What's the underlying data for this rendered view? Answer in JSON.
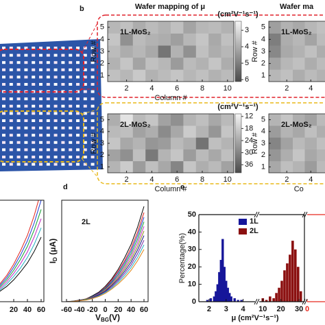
{
  "chart_data": [
    {
      "type": "heatmap",
      "panel": "b",
      "title": "Wafer mapping of μ",
      "label": "1L-MoS₂",
      "colorbar_label": "(cm²V⁻¹s⁻¹)",
      "xlabel": "Column #",
      "ylabel": "Row #",
      "xlim": [
        0.5,
        10.5
      ],
      "xticks": [
        2,
        4,
        6,
        8,
        10
      ],
      "ylim": [
        0.5,
        5.5
      ],
      "yticks": [
        1,
        2,
        3,
        4,
        5
      ],
      "z": [
        [
          3.6,
          3.8,
          3.4,
          3.9,
          3.7,
          3.5,
          3.8,
          3.6,
          3.9,
          3.7
        ],
        [
          3.9,
          3.5,
          4.2,
          3.6,
          3.8,
          4.4,
          3.7,
          3.9,
          3.5,
          4.0
        ],
        [
          3.7,
          4.0,
          3.8,
          4.1,
          5.2,
          3.9,
          4.6,
          3.6,
          4.0,
          3.8
        ],
        [
          3.5,
          4.6,
          3.7,
          3.9,
          4.0,
          4.3,
          3.8,
          3.5,
          4.1,
          3.6
        ],
        [
          3.8,
          3.6,
          4.0,
          3.7,
          3.9,
          3.6,
          4.2,
          3.8,
          3.7,
          3.9
        ]
      ],
      "zlim": [
        2.45,
        6.12
      ],
      "zticks": [
        3,
        4,
        5,
        6
      ],
      "colormap": [
        "#f6f6f6",
        "#4a4a4a"
      ]
    },
    {
      "type": "heatmap",
      "label": "2L-MoS₂",
      "colorbar_label": "(cm²V⁻¹s⁻¹)",
      "xlabel": "Column #",
      "ylabel": "Row #",
      "xlim": [
        0.5,
        10.5
      ],
      "xticks": [
        2,
        4,
        6,
        8,
        10
      ],
      "ylim": [
        0.5,
        5.5
      ],
      "yticks": [
        1,
        2,
        3,
        4,
        5
      ],
      "z": [
        [
          22,
          18,
          26,
          20,
          24,
          30,
          19,
          23,
          21,
          25
        ],
        [
          25,
          28,
          20,
          32,
          22,
          19,
          26,
          21,
          24,
          20
        ],
        [
          19,
          24,
          22,
          27,
          26,
          21,
          23,
          33,
          20,
          22
        ],
        [
          21,
          20,
          25,
          23,
          29,
          24,
          18,
          22,
          27,
          19
        ],
        [
          23,
          14,
          21,
          19,
          25,
          28,
          22,
          20,
          24,
          21
        ]
      ],
      "zlim": [
        10.7,
        40
      ],
      "zticks": [
        12,
        18,
        24,
        30,
        36
      ],
      "colormap": [
        "#f6f6f6",
        "#4a4a4a"
      ]
    },
    {
      "type": "heatmap",
      "title": "Wafer ma",
      "label": "1L-MoS₂",
      "ylabel": "Row #",
      "xlim": [
        0.5,
        5.5
      ],
      "xticks": [
        2,
        4
      ],
      "ylim": [
        0.5,
        5.5
      ],
      "yticks": [
        1,
        2,
        3,
        4,
        5
      ],
      "z": [
        [
          3.8,
          3.6,
          4.0,
          3.7,
          3.9
        ],
        [
          4.2,
          3.8,
          3.6,
          4.0,
          3.7
        ],
        [
          4.8,
          4.1,
          3.9,
          3.6,
          4.0
        ],
        [
          5.0,
          4.0,
          3.8,
          4.2,
          3.7
        ],
        [
          4.3,
          3.9,
          4.1,
          3.8,
          3.6
        ]
      ],
      "zlim": [
        2.45,
        6.12
      ],
      "colormap": [
        "#f6f6f6",
        "#4a4a4a"
      ]
    },
    {
      "type": "heatmap",
      "label": "2L-MoS₂",
      "xlabel": "Co",
      "ylabel": "Row #",
      "xlim": [
        0.5,
        5.5
      ],
      "xticks": [
        2,
        4
      ],
      "ylim": [
        0.5,
        5.5
      ],
      "yticks": [
        1,
        2,
        3,
        4,
        5
      ],
      "z": [
        [
          24,
          20,
          22,
          26,
          21
        ],
        [
          27,
          23,
          19,
          24,
          22
        ],
        [
          30,
          25,
          21,
          23,
          20
        ],
        [
          26,
          22,
          24,
          20,
          23
        ],
        [
          22,
          19,
          23,
          25,
          21
        ]
      ],
      "zlim": [
        10.7,
        40
      ],
      "colormap": [
        "#f6f6f6",
        "#4a4a4a"
      ]
    },
    {
      "type": "line",
      "x": [
        -60,
        -50,
        -40,
        -30,
        -20,
        -10,
        0,
        10,
        20,
        30,
        40,
        50,
        60
      ],
      "xlim": [
        -60,
        60
      ],
      "xticks": [
        20,
        40,
        60
      ],
      "ylim": [
        0,
        3.3
      ],
      "series": [
        {
          "color": "#e0201a",
          "values": [
            0,
            0.02,
            0.05,
            0.11,
            0.22,
            0.36,
            0.58,
            0.86,
            1.22,
            1.66,
            2.16,
            2.81,
            3.6
          ]
        },
        {
          "color": "#1a3ad0",
          "values": [
            0,
            0.02,
            0.05,
            0.1,
            0.2,
            0.33,
            0.53,
            0.79,
            1.12,
            1.52,
            1.98,
            2.57,
            3.3
          ]
        },
        {
          "color": "#10a030",
          "values": [
            0,
            0.02,
            0.05,
            0.09,
            0.18,
            0.3,
            0.48,
            0.72,
            1.02,
            1.38,
            1.8,
            2.34,
            3.0
          ]
        },
        {
          "color": "#c020c0",
          "values": [
            0,
            0.01,
            0.04,
            0.08,
            0.16,
            0.27,
            0.43,
            0.65,
            0.92,
            1.24,
            1.62,
            2.11,
            2.7
          ]
        },
        {
          "color": "#20b0c0",
          "values": [
            0,
            0.01,
            0.04,
            0.07,
            0.14,
            0.24,
            0.38,
            0.58,
            0.82,
            1.1,
            1.44,
            1.87,
            2.4
          ]
        },
        {
          "color": "#000000",
          "values": [
            0,
            0.01,
            0.03,
            0.06,
            0.13,
            0.21,
            0.34,
            0.5,
            0.71,
            0.97,
            1.26,
            1.64,
            2.1
          ]
        }
      ]
    },
    {
      "type": "line",
      "panel": "d",
      "annotation": "2L",
      "xlabel": [
        "V",
        "BG",
        "(V)"
      ],
      "ylabel": [
        "I",
        "D",
        " (μA)"
      ],
      "x": [
        -60,
        -50,
        -40,
        -30,
        -20,
        -10,
        0,
        10,
        20,
        30,
        40,
        50,
        60
      ],
      "xlim": [
        -60,
        60
      ],
      "xticks": [
        -60,
        -40,
        -20,
        0,
        20,
        40,
        60
      ],
      "ylim": [
        0,
        3.3
      ],
      "series": [
        {
          "color": "#000000",
          "values": [
            0,
            0.02,
            0.05,
            0.09,
            0.19,
            0.31,
            0.5,
            0.74,
            1.05,
            1.43,
            1.86,
            2.42,
            3.1
          ]
        },
        {
          "color": "#e0201a",
          "values": [
            0,
            0.01,
            0.04,
            0.09,
            0.17,
            0.29,
            0.46,
            0.7,
            0.99,
            1.33,
            1.74,
            2.26,
            2.9
          ]
        },
        {
          "color": "#1a3ad0",
          "values": [
            0,
            0.01,
            0.04,
            0.08,
            0.17,
            0.28,
            0.44,
            0.66,
            0.94,
            1.27,
            1.65,
            2.15,
            2.75
          ]
        },
        {
          "color": "#10a030",
          "values": [
            0,
            0.01,
            0.04,
            0.08,
            0.16,
            0.26,
            0.42,
            0.62,
            0.88,
            1.2,
            1.56,
            2.03,
            2.6
          ]
        },
        {
          "color": "#c020c0",
          "values": [
            0,
            0.01,
            0.04,
            0.07,
            0.15,
            0.25,
            0.39,
            0.59,
            0.83,
            1.13,
            1.47,
            1.91,
            2.45
          ]
        },
        {
          "color": "#8a8a10",
          "values": [
            0,
            0.01,
            0.03,
            0.07,
            0.14,
            0.23,
            0.37,
            0.55,
            0.78,
            1.06,
            1.38,
            1.79,
            2.3
          ]
        },
        {
          "color": "#101080",
          "values": [
            0,
            0.01,
            0.03,
            0.06,
            0.13,
            0.22,
            0.34,
            0.52,
            0.73,
            0.99,
            1.29,
            1.68,
            2.15
          ]
        },
        {
          "color": "#7020a0",
          "values": [
            0,
            0.01,
            0.03,
            0.06,
            0.12,
            0.2,
            0.32,
            0.48,
            0.68,
            0.92,
            1.2,
            1.56,
            2.0
          ]
        },
        {
          "color": "#20b0c0",
          "values": [
            0,
            0.01,
            0.03,
            0.06,
            0.11,
            0.19,
            0.3,
            0.44,
            0.63,
            0.85,
            1.11,
            1.44,
            1.85
          ]
        },
        {
          "color": "#e08010",
          "values": [
            0,
            0.01,
            0.03,
            0.05,
            0.1,
            0.17,
            0.27,
            0.41,
            0.58,
            0.78,
            1.02,
            1.33,
            1.7
          ]
        }
      ]
    },
    {
      "type": "histogram",
      "panel": "e",
      "ylabel": "Percentage(%)",
      "xlabel": "μ (cm²V⁻¹s⁻¹)",
      "ylim": [
        0,
        50
      ],
      "yticks": [
        0,
        10,
        20,
        30,
        40,
        50
      ],
      "segments": [
        {
          "xlim": [
            1.4,
            4.7
          ],
          "xticks": [
            2,
            3,
            4
          ]
        },
        {
          "xlim": [
            8,
            33
          ],
          "xticks": [
            10,
            20,
            30
          ]
        },
        {
          "xlim": [
            0,
            10
          ],
          "xticks": [
            0
          ],
          "color": "#e8281e"
        }
      ],
      "series": [
        {
          "name": "1L",
          "color": "#16169a",
          "segment": 0,
          "x": [
            1.9,
            2.1,
            2.3,
            2.4,
            2.5,
            2.6,
            2.7,
            2.8,
            2.9,
            3.0,
            3.1,
            3.2,
            3.3,
            3.5,
            3.7,
            3.9
          ],
          "values": [
            1,
            2,
            3,
            6,
            10,
            17,
            24,
            36,
            20,
            12,
            8,
            5,
            3,
            2,
            1,
            1
          ]
        },
        {
          "name": "2L",
          "color": "#8b1010",
          "segment": 1,
          "x": [
            10,
            12,
            14,
            16,
            17.5,
            19,
            20.5,
            22,
            23.5,
            25,
            26.5,
            28,
            29.5,
            31
          ],
          "values": [
            2,
            1,
            3,
            2,
            5,
            8,
            12,
            18,
            22,
            27,
            35,
            30,
            20,
            6
          ]
        }
      ]
    }
  ]
}
